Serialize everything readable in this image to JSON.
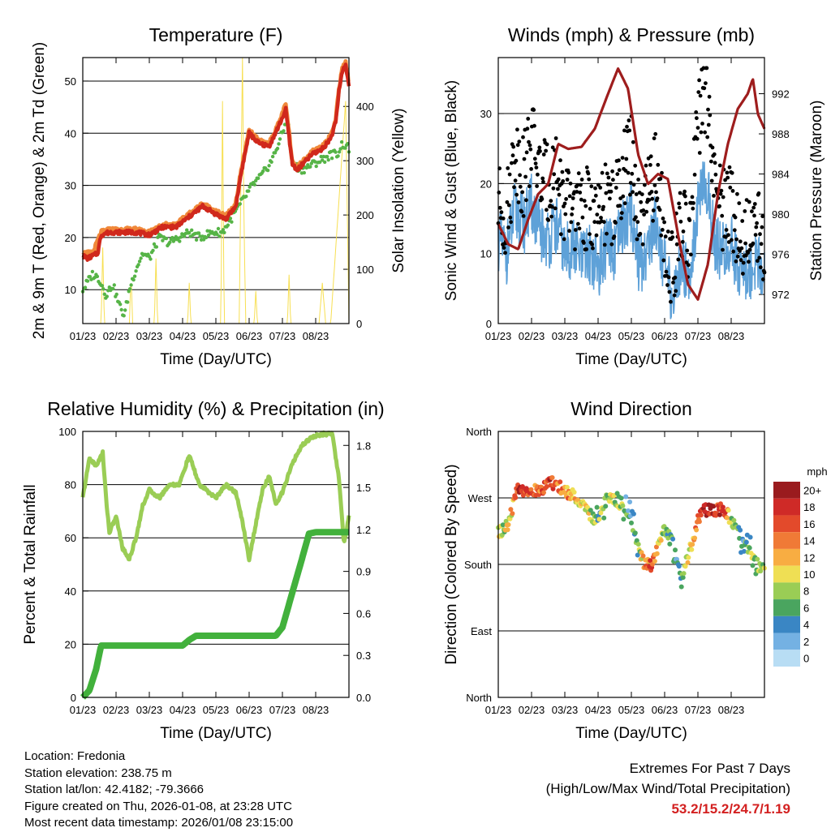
{
  "colors": {
    "temp": "#d0281c",
    "temp9m": "#f0883a",
    "dewpoint": "#56b447",
    "solar": "#f7df52",
    "gust": "#000000",
    "wind": "#5ea1d8",
    "pressure": "#9e1d1d",
    "rh": "#9acd55",
    "precip": "#42b13c"
  },
  "date_ticks": [
    "01/23",
    "02/23",
    "03/23",
    "04/23",
    "05/23",
    "06/23",
    "07/23",
    "08/23"
  ],
  "chart_data": [
    {
      "type": "line",
      "title": "Temperature (F)",
      "xlabel": "Time (Day/UTC)",
      "ylabel": "2m & 9m T (Red, Orange) & 2m Td (Green)",
      "y2label": "Solar Insolation (Yellow)",
      "ylim": [
        3.5,
        54.5
      ],
      "y_ticks": [
        10,
        20,
        30,
        40,
        50
      ],
      "y2lim": [
        0,
        490
      ],
      "y2_ticks": [
        0,
        100,
        200,
        300,
        400
      ],
      "series": [
        {
          "name": "2m T",
          "color": "#d0281c",
          "x": [
            0,
            0.15,
            0.3,
            0.45,
            0.55,
            0.8,
            1.2,
            1.6,
            2.0,
            2.4,
            2.8,
            3.2,
            3.6,
            4.0,
            4.3,
            4.6,
            4.75,
            5.0,
            5.3,
            5.6,
            5.9,
            6.1,
            6.3,
            6.45,
            6.6,
            6.9,
            7.2,
            7.45,
            7.6,
            7.7,
            7.8,
            7.9,
            8.0
          ],
          "values": [
            16.5,
            16,
            16.5,
            17,
            20.5,
            21,
            21,
            21,
            20.5,
            22,
            22,
            24,
            26,
            24.5,
            23.5,
            26,
            32,
            40,
            38,
            37.5,
            41.5,
            44.5,
            34,
            33,
            34,
            36,
            37,
            39,
            42,
            48,
            52,
            53,
            49
          ]
        },
        {
          "name": "9m T",
          "color": "#f0883a",
          "x": [
            0,
            0.3,
            0.55,
            0.8,
            1.2,
            1.6,
            2.0,
            2.4,
            2.8,
            3.2,
            3.6,
            4.0,
            4.3,
            4.6,
            4.75,
            5.0,
            5.3,
            5.6,
            5.9,
            6.1,
            6.3,
            6.45,
            6.6,
            6.9,
            7.2,
            7.45,
            7.6,
            7.7,
            7.8,
            7.9,
            8.0
          ],
          "values": [
            17,
            17,
            21,
            21.5,
            21.5,
            21.5,
            21,
            22.5,
            22.5,
            24.5,
            26.5,
            25,
            24,
            26.5,
            32.5,
            40.5,
            38.5,
            38,
            42,
            45.5,
            34.5,
            33.5,
            34.5,
            36.5,
            37.5,
            39.5,
            42.5,
            48.5,
            52.5,
            53.5,
            49.5
          ]
        },
        {
          "name": "2m Td",
          "color": "#56b447",
          "x": [
            0,
            0.3,
            0.5,
            0.7,
            0.9,
            1.1,
            1.25,
            1.4,
            1.6,
            1.8,
            2.0,
            2.3,
            2.6,
            2.9,
            3.2,
            3.5,
            3.9,
            4.2,
            4.5,
            4.8,
            5.1,
            5.4,
            5.7,
            6.0,
            6.15,
            6.3,
            6.6,
            6.9,
            7.2,
            7.5,
            7.65,
            7.8,
            8.0
          ],
          "values": [
            10,
            13,
            12,
            9,
            11,
            7,
            5,
            10,
            14,
            17,
            16,
            20,
            19,
            20,
            21,
            20,
            21,
            21,
            24,
            27,
            30,
            32,
            35,
            40,
            43,
            34,
            33,
            34,
            35,
            36,
            36,
            38,
            37
          ]
        },
        {
          "name": "Solar",
          "axis": "y2",
          "color": "#f7df52",
          "x": [
            0,
            0.55,
            0.6,
            0.65,
            0.9,
            1.4,
            1.45,
            1.5,
            1.9,
            2.15,
            2.2,
            2.25,
            2.5,
            3.15,
            3.2,
            3.25,
            3.5,
            4.15,
            4.2,
            4.25,
            4.5,
            4.7,
            4.8,
            4.85,
            4.9,
            5.15,
            5.2,
            5.25,
            5.5,
            6.15,
            6.2,
            6.25,
            6.5,
            7.1,
            7.2,
            7.3,
            7.45,
            7.9,
            8.0
          ],
          "values": [
            0,
            0,
            140,
            0,
            0,
            0,
            90,
            0,
            0,
            0,
            120,
            0,
            0,
            0,
            75,
            0,
            0,
            0,
            410,
            0,
            0,
            0,
            490,
            160,
            0,
            0,
            60,
            0,
            0,
            0,
            90,
            0,
            0,
            0,
            75,
            0,
            0,
            410,
            0
          ]
        }
      ]
    },
    {
      "type": "line",
      "title": "Winds (mph) & Pressure (mb)",
      "xlabel": "Time (Day/UTC)",
      "ylabel": "Sonic Wind & Gust (Blue, Black)",
      "y2label": "Station Pressure (Maroon)",
      "ylim": [
        0,
        38
      ],
      "y_ticks": [
        0,
        10,
        20,
        30
      ],
      "y2lim": [
        969.1,
        995.6
      ],
      "y2_ticks": [
        972,
        976,
        980,
        984,
        988,
        992
      ],
      "series": [
        {
          "name": "Pressure",
          "axis": "y2",
          "color": "#9e1d1d",
          "x": [
            0,
            0.3,
            0.6,
            0.9,
            1.2,
            1.5,
            1.8,
            2.1,
            2.5,
            2.9,
            3.3,
            3.6,
            3.9,
            4.2,
            4.5,
            4.8,
            5.1,
            5.4,
            5.7,
            6.0,
            6.3,
            6.6,
            6.9,
            7.2,
            7.5,
            7.65,
            7.8,
            8.0
          ],
          "values": [
            979,
            977,
            976.5,
            979.5,
            982,
            983,
            987,
            986.5,
            986.7,
            988.5,
            992,
            994.5,
            992.5,
            986,
            983,
            984,
            983.5,
            978,
            973,
            971.5,
            975,
            982,
            987,
            990.5,
            992,
            993.5,
            990,
            988.5
          ]
        },
        {
          "name": "Wind",
          "color": "#5ea1d8",
          "x": [
            0,
            0.25,
            0.5,
            0.75,
            1.0,
            1.25,
            1.5,
            1.75,
            2.0,
            2.25,
            2.5,
            2.75,
            3.0,
            3.25,
            3.5,
            3.75,
            4.0,
            4.25,
            4.5,
            4.75,
            5.0,
            5.25,
            5.5,
            5.75,
            6.0,
            6.25,
            6.5,
            6.75,
            7.0,
            7.25,
            7.5,
            7.75,
            8.0
          ],
          "values": [
            12,
            10,
            16,
            14,
            17,
            13,
            12,
            14,
            10,
            11,
            9,
            10,
            8,
            11,
            10,
            14,
            16,
            8,
            11,
            15,
            8,
            3,
            9,
            7,
            17,
            20,
            12,
            10,
            11,
            8,
            7,
            9,
            7
          ]
        },
        {
          "name": "Gust",
          "color": "#000000",
          "x": [
            0,
            0.25,
            0.5,
            0.75,
            1.0,
            1.25,
            1.5,
            1.75,
            2.0,
            2.25,
            2.5,
            2.75,
            3.0,
            3.25,
            3.5,
            3.75,
            4.0,
            4.25,
            4.5,
            4.75,
            5.0,
            5.25,
            5.5,
            5.75,
            6.0,
            6.25,
            6.5,
            6.75,
            7.0,
            7.25,
            7.5,
            7.75,
            8.0
          ],
          "values": [
            17,
            15,
            25,
            21,
            27,
            21,
            20,
            22,
            16,
            17,
            15,
            17,
            14,
            18,
            16,
            22,
            24,
            13,
            18,
            22,
            13,
            7,
            14,
            12,
            28,
            34,
            19,
            16,
            17,
            13,
            12,
            14,
            12
          ]
        }
      ]
    },
    {
      "type": "line",
      "title": "Relative Humidity (%) & Precipitation (in)",
      "xlabel": "Time (Day/UTC)",
      "ylabel": "Percent & Total Rainfall",
      "ylim": [
        0,
        100
      ],
      "y_ticks": [
        0,
        20,
        40,
        60,
        80,
        100
      ],
      "y2lim": [
        0,
        1.9
      ],
      "y2_ticks": [
        "0.0",
        "0.3",
        "0.6",
        "0.9",
        "1.2",
        "1.5",
        "1.8"
      ],
      "series": [
        {
          "name": "RH",
          "color": "#9acd55",
          "x": [
            0,
            0.2,
            0.4,
            0.6,
            0.7,
            0.8,
            1.0,
            1.2,
            1.4,
            1.6,
            1.8,
            2.0,
            2.3,
            2.6,
            2.9,
            3.2,
            3.5,
            3.8,
            4.0,
            4.3,
            4.6,
            4.8,
            5.0,
            5.2,
            5.4,
            5.6,
            5.8,
            6.0,
            6.3,
            6.6,
            6.9,
            7.2,
            7.5,
            7.7,
            7.85,
            8.0
          ],
          "values": [
            75,
            90,
            87,
            92,
            75,
            62,
            68,
            56,
            52,
            60,
            72,
            78,
            75,
            80,
            80,
            91,
            80,
            77,
            75,
            80,
            77,
            66,
            52,
            65,
            78,
            83,
            73,
            77,
            88,
            95,
            98,
            99,
            99,
            82,
            58,
            68
          ]
        },
        {
          "name": "Precipitation",
          "axis": "y2",
          "color": "#42b13c",
          "x": [
            0,
            0.2,
            0.4,
            0.55,
            1.6,
            2.2,
            3.0,
            3.2,
            3.4,
            4.2,
            5.0,
            5.8,
            6.0,
            6.3,
            6.6,
            6.8,
            7.0,
            8.0
          ],
          "values": [
            0,
            0.05,
            0.2,
            0.37,
            0.37,
            0.37,
            0.37,
            0.41,
            0.44,
            0.44,
            0.44,
            0.44,
            0.5,
            0.75,
            1.0,
            1.17,
            1.18,
            1.18
          ]
        }
      ]
    },
    {
      "type": "scatter",
      "title": "Wind Direction",
      "xlabel": "Time (Day/UTC)",
      "ylabel": "Direction (Colored By Speed)",
      "ylim": [
        0,
        360
      ],
      "y_ticks": [
        "North",
        "East",
        "South",
        "West",
        "North"
      ],
      "colorbar_title": "mph",
      "colorbar_labels": [
        "20+",
        "18",
        "16",
        "14",
        "12",
        "10",
        "8",
        "6",
        "4",
        "2",
        "0"
      ],
      "colorbar_colors": [
        "#9a1b1e",
        "#cf2a27",
        "#e34a2b",
        "#f07a36",
        "#f8ad42",
        "#efdf54",
        "#9acd55",
        "#4aa55f",
        "#3a86c4",
        "#74b1e3",
        "#b8ddf4"
      ],
      "series": [
        {
          "name": "Direction",
          "color": "#f07a36",
          "x": [
            0,
            0.15,
            0.3,
            0.45,
            0.6,
            0.8,
            1.0,
            1.2,
            1.4,
            1.6,
            1.8,
            2.0,
            2.2,
            2.4,
            2.6,
            2.8,
            3.0,
            3.2,
            3.4,
            3.6,
            3.8,
            4.0,
            4.2,
            4.4,
            4.6,
            4.8,
            5.0,
            5.2,
            5.4,
            5.6,
            5.8,
            6.0,
            6.2,
            6.4,
            6.6,
            6.8,
            7.0,
            7.2,
            7.4,
            7.6,
            7.8,
            8.0
          ],
          "values": [
            225,
            225,
            235,
            260,
            285,
            280,
            282,
            278,
            286,
            290,
            287,
            278,
            275,
            268,
            255,
            245,
            240,
            265,
            270,
            265,
            258,
            240,
            205,
            180,
            178,
            205,
            228,
            215,
            165,
            175,
            205,
            240,
            255,
            252,
            255,
            253,
            240,
            220,
            208,
            195,
            178,
            180
          ],
          "speeds": [
            8,
            9,
            10,
            12,
            18,
            17,
            16,
            15,
            16,
            17,
            14,
            13,
            12,
            10,
            9,
            8,
            7,
            8,
            9,
            8,
            6,
            5,
            6,
            14,
            16,
            12,
            6,
            5,
            4,
            8,
            12,
            14,
            20,
            18,
            17,
            16,
            9,
            6,
            5,
            7,
            8,
            9
          ]
        }
      ]
    }
  ],
  "info": {
    "location": "Location: Fredonia",
    "elevation": "Station elevation: 238.75 m",
    "latlon": "Station lat/lon: 42.4182; -79.3666",
    "created": "Figure created on Thu, 2026-01-08, at 23:28 UTC",
    "timestamp": "Most recent data timestamp: 2026/01/08 23:15:00"
  },
  "extremes": {
    "title": "Extremes For Past 7 Days",
    "subtitle": "(High/Low/Max Wind/Total Precipitation)",
    "values": "53.2/15.2/24.7/1.19"
  }
}
